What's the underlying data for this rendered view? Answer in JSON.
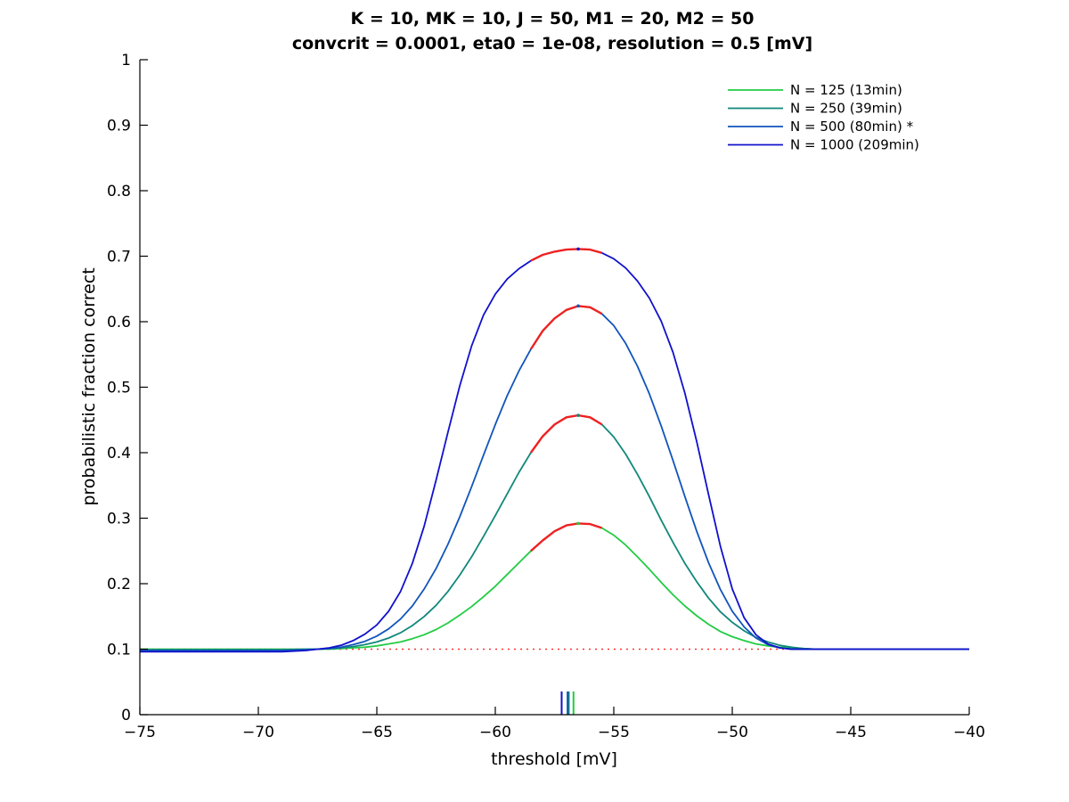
{
  "chart_data": {
    "type": "line",
    "title": [
      "K = 10, MK = 10, J = 50, M1 = 20, M2 = 50",
      "convcrit = 0.0001, eta0 = 1e-08, resolution = 0.5 [mV]"
    ],
    "xlabel": "threshold [mV]",
    "ylabel": "probabilistic fraction correct",
    "xlim": [
      -75,
      -40
    ],
    "ylim": [
      0,
      1
    ],
    "xticks": [
      -75,
      -70,
      -65,
      -60,
      -55,
      -50,
      -45,
      -40
    ],
    "yticks": [
      0,
      0.1,
      0.2,
      0.3,
      0.4,
      0.5,
      0.6,
      0.7,
      0.8,
      0.9,
      1
    ],
    "x": [
      -75,
      -70,
      -69,
      -68,
      -67.5,
      -67,
      -66.5,
      -66,
      -65.5,
      -65,
      -64.5,
      -64,
      -63.5,
      -63,
      -62.5,
      -62,
      -61.5,
      -61,
      -60.5,
      -60,
      -59.5,
      -59,
      -58.5,
      -58,
      -57.5,
      -57,
      -56.5,
      -56,
      -55.5,
      -55,
      -54.5,
      -54,
      -53.5,
      -53,
      -52.5,
      -52,
      -51.5,
      -51,
      -50.5,
      -50,
      -49.5,
      -49,
      -48.5,
      -48,
      -47.5,
      -47,
      -46.5,
      -46,
      -45,
      -44,
      -40
    ],
    "series": [
      {
        "name": "N = 125 (13min)",
        "color": "#22cc44",
        "values": [
          0.1,
          0.1,
          0.1,
          0.1,
          0.1,
          0.1,
          0.101,
          0.102,
          0.103,
          0.105,
          0.108,
          0.111,
          0.116,
          0.122,
          0.13,
          0.14,
          0.152,
          0.165,
          0.18,
          0.196,
          0.214,
          0.232,
          0.25,
          0.266,
          0.28,
          0.289,
          0.292,
          0.291,
          0.285,
          0.274,
          0.259,
          0.241,
          0.222,
          0.202,
          0.183,
          0.166,
          0.151,
          0.138,
          0.127,
          0.119,
          0.113,
          0.108,
          0.105,
          0.103,
          0.102,
          0.101,
          0.1,
          0.1,
          0.1,
          0.1,
          0.1
        ]
      },
      {
        "name": "N = 250 (39min)",
        "color": "#11887a",
        "values": [
          0.099,
          0.099,
          0.099,
          0.1,
          0.1,
          0.101,
          0.102,
          0.104,
          0.107,
          0.111,
          0.117,
          0.125,
          0.136,
          0.15,
          0.167,
          0.188,
          0.213,
          0.241,
          0.272,
          0.304,
          0.337,
          0.37,
          0.4,
          0.425,
          0.443,
          0.454,
          0.457,
          0.454,
          0.443,
          0.424,
          0.398,
          0.367,
          0.333,
          0.297,
          0.263,
          0.231,
          0.203,
          0.178,
          0.157,
          0.141,
          0.128,
          0.118,
          0.111,
          0.106,
          0.103,
          0.101,
          0.1,
          0.1,
          0.1,
          0.1,
          0.1
        ]
      },
      {
        "name": "N = 500 (80min) *",
        "color": "#1155bb",
        "values": [
          0.098,
          0.098,
          0.098,
          0.099,
          0.1,
          0.101,
          0.103,
          0.107,
          0.112,
          0.12,
          0.131,
          0.146,
          0.166,
          0.192,
          0.223,
          0.26,
          0.302,
          0.348,
          0.396,
          0.443,
          0.487,
          0.525,
          0.558,
          0.586,
          0.605,
          0.618,
          0.624,
          0.622,
          0.612,
          0.594,
          0.567,
          0.532,
          0.49,
          0.441,
          0.388,
          0.333,
          0.28,
          0.232,
          0.191,
          0.158,
          0.134,
          0.117,
          0.107,
          0.102,
          0.1,
          0.1,
          0.1,
          0.1,
          0.1,
          0.1,
          0.1
        ]
      },
      {
        "name": "N = 1000 (209min)",
        "color": "#1111cc",
        "values": [
          0.096,
          0.096,
          0.096,
          0.098,
          0.1,
          0.102,
          0.106,
          0.113,
          0.123,
          0.137,
          0.158,
          0.188,
          0.231,
          0.288,
          0.358,
          0.431,
          0.502,
          0.563,
          0.61,
          0.642,
          0.665,
          0.681,
          0.693,
          0.702,
          0.707,
          0.71,
          0.711,
          0.71,
          0.705,
          0.696,
          0.682,
          0.662,
          0.636,
          0.601,
          0.553,
          0.491,
          0.417,
          0.336,
          0.257,
          0.192,
          0.148,
          0.122,
          0.108,
          0.102,
          0.1,
          0.1,
          0.1,
          0.1,
          0.1,
          0.1,
          0.1
        ]
      }
    ],
    "chance_level": {
      "value": 0.1,
      "color": "#ff3333"
    },
    "highlight": {
      "color": "#ee2222",
      "x_range": [
        -58.5,
        -55.5
      ]
    },
    "optimum_markers": [
      {
        "x": -56.7,
        "color": "#22cc44"
      },
      {
        "x": -56.9,
        "color": "#11887a"
      },
      {
        "x": -56.95,
        "color": "#1155bb"
      },
      {
        "x": -57.2,
        "color": "#1111cc"
      }
    ],
    "legend_position": "top-right",
    "grid": false
  }
}
